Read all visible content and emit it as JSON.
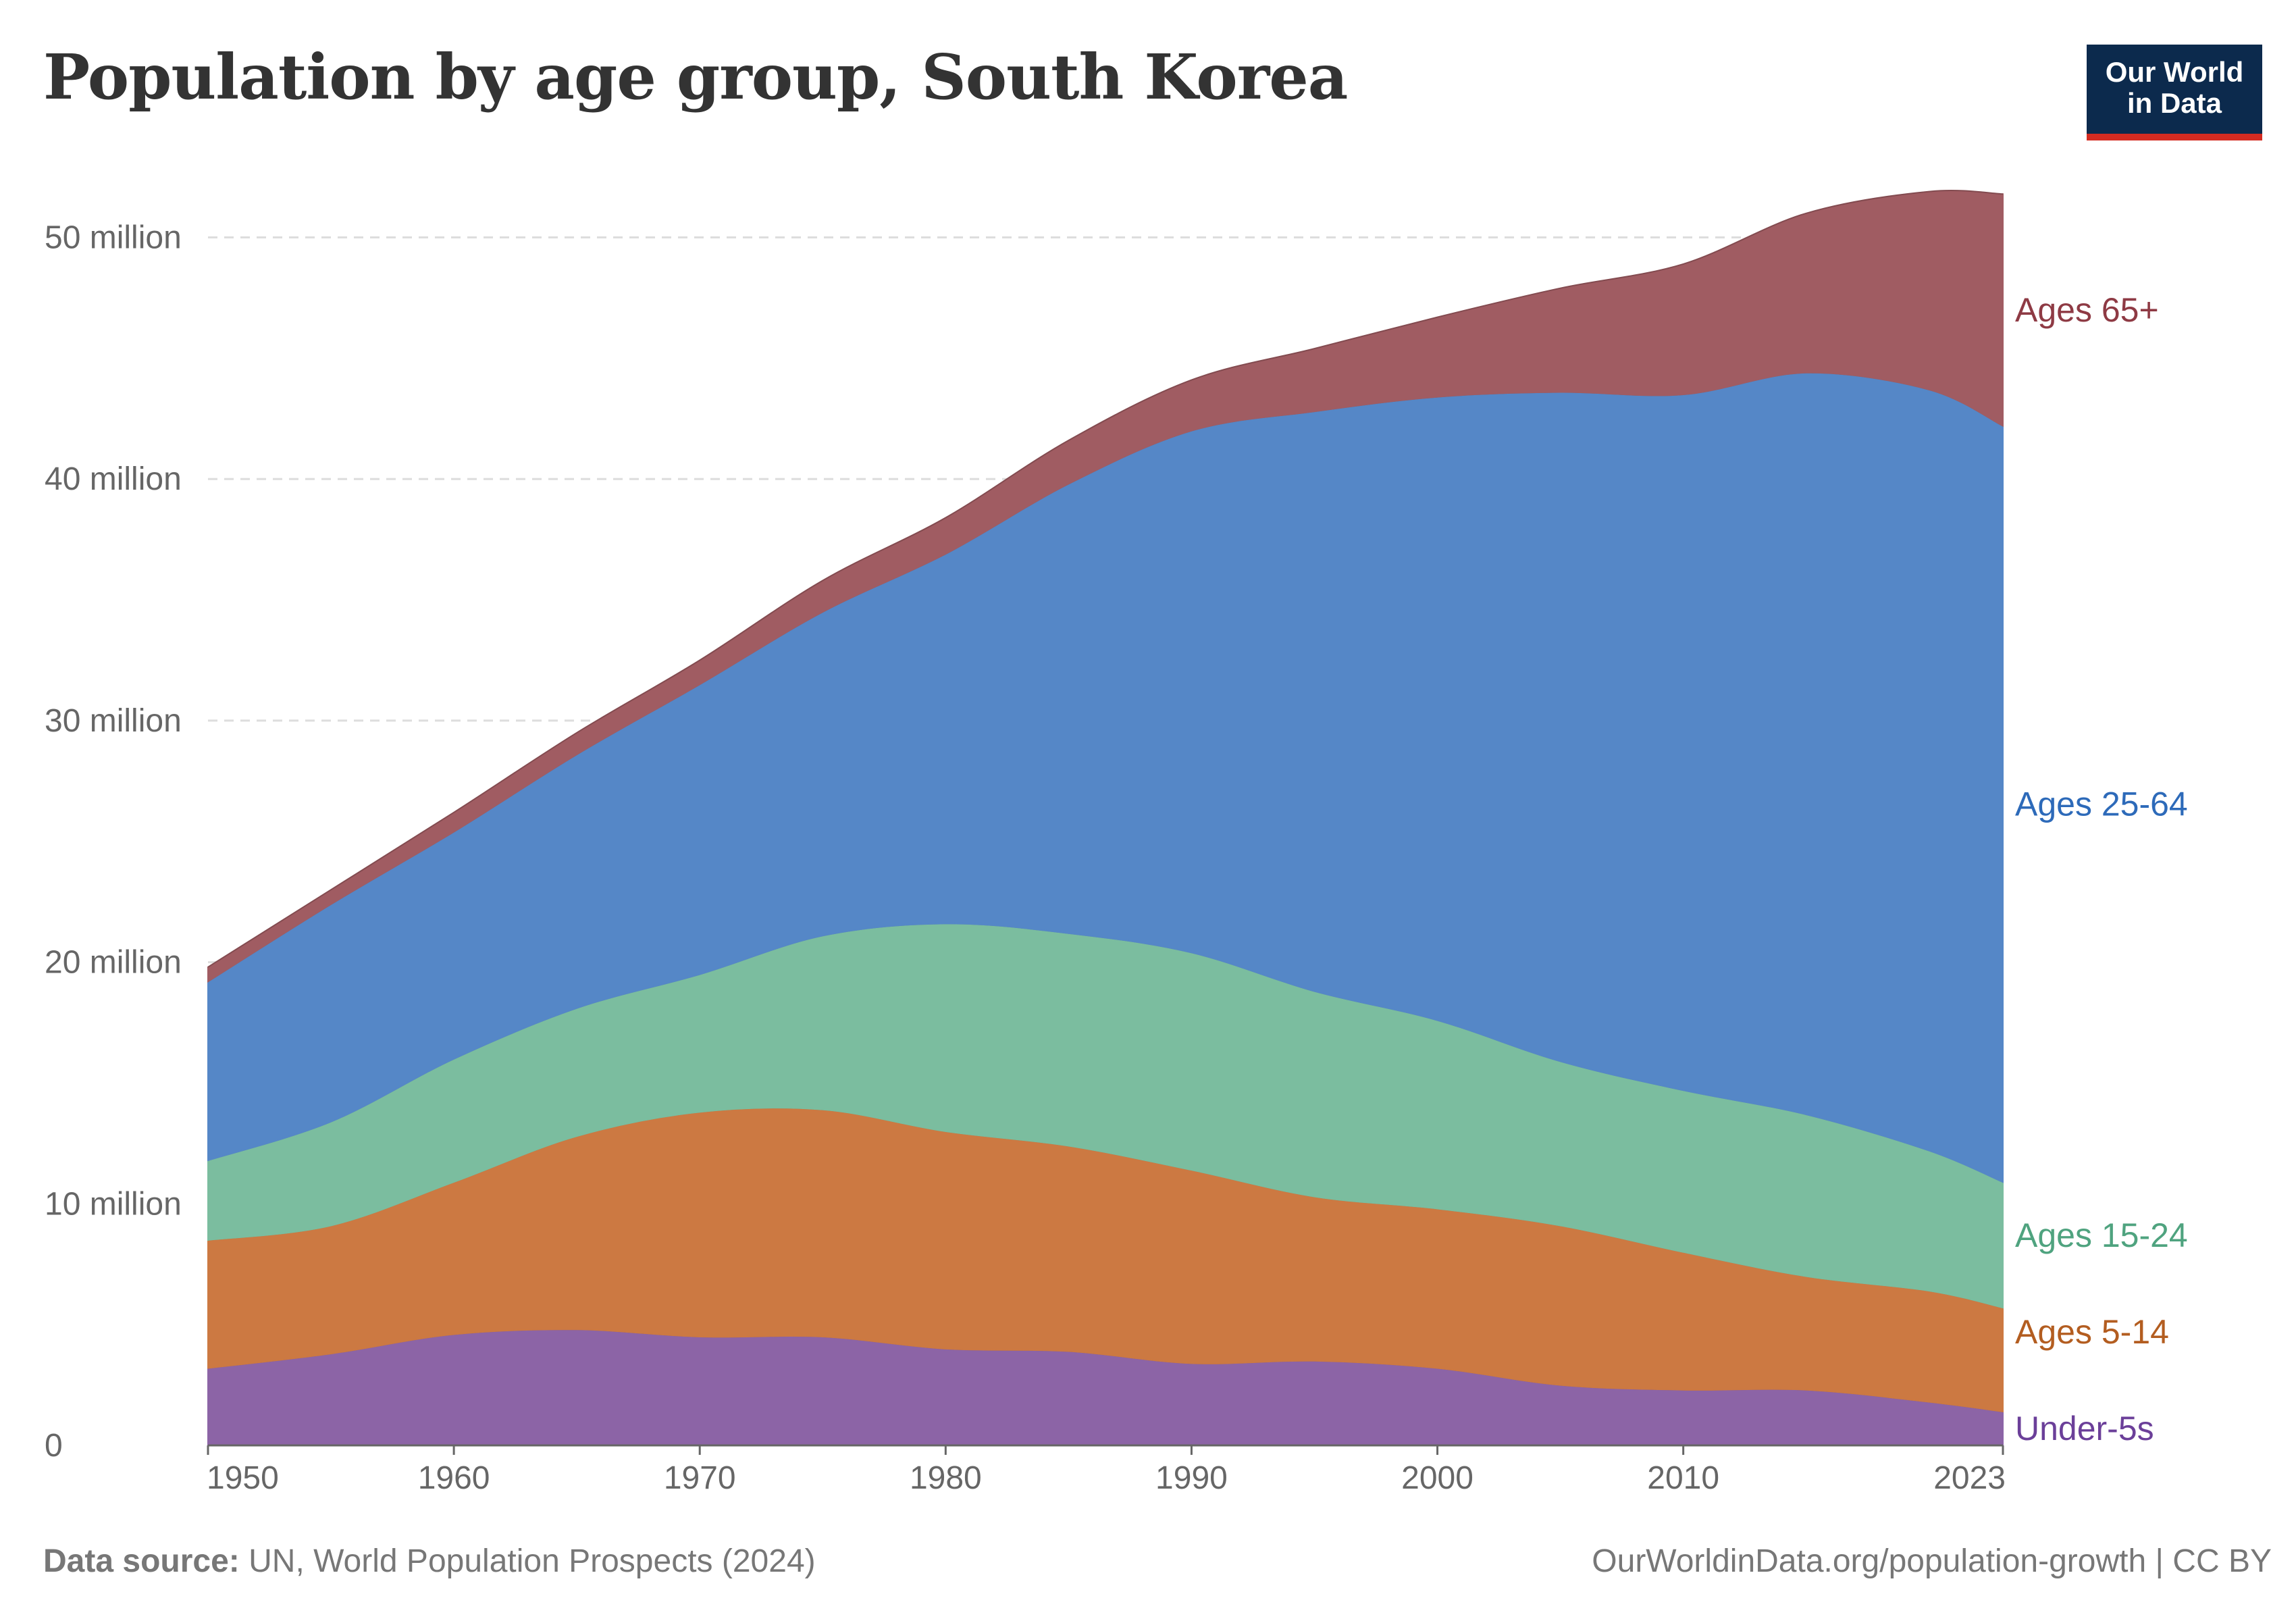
{
  "title": "Population by age group, South Korea",
  "logo": {
    "line1": "Our World",
    "line2": "in Data"
  },
  "footer": {
    "source_label": "Data source:",
    "source_text": "UN, World Population Prospects (2024)",
    "url": "OurWorldinData.org/population-growth",
    "license": "| CC BY"
  },
  "chart_data": {
    "type": "area",
    "stacked": true,
    "title": "Population by age group, South Korea",
    "xlabel": "",
    "ylabel": "",
    "xlim": [
      1950,
      2023
    ],
    "ylim": [
      0,
      52000000
    ],
    "y_ticks": [
      0,
      10000000,
      20000000,
      30000000,
      40000000,
      50000000
    ],
    "y_tick_labels": [
      "0",
      "10 million",
      "20 million",
      "30 million",
      "40 million",
      "50 million"
    ],
    "x_ticks": [
      1950,
      1960,
      1970,
      1980,
      1990,
      2000,
      2010,
      2023
    ],
    "x_tick_labels": [
      "1950",
      "1960",
      "1970",
      "1980",
      "1990",
      "2000",
      "2010",
      "2023"
    ],
    "grid": "horizontal-dashed",
    "legend": "inline-right",
    "x": [
      1950,
      1955,
      1960,
      1965,
      1970,
      1975,
      1980,
      1985,
      1990,
      1995,
      2000,
      2005,
      2010,
      2015,
      2020,
      2023
    ],
    "series": [
      {
        "name": "Under-5s",
        "color": "#8c64a6",
        "values": [
          3200000,
          3800000,
          4600000,
          4800000,
          4500000,
          4500000,
          4000000,
          3900000,
          3400000,
          3500000,
          3200000,
          2500000,
          2300000,
          2300000,
          1800000,
          1400000
        ]
      },
      {
        "name": "Ages 5-14",
        "color": "#cc7942",
        "values": [
          5300000,
          5300000,
          6300000,
          8000000,
          9300000,
          9400000,
          9000000,
          8500000,
          8000000,
          6800000,
          6600000,
          6600000,
          5700000,
          4700000,
          4600000,
          4300000
        ]
      },
      {
        "name": "Ages 15-24",
        "color": "#7bbd9f",
        "values": [
          3300000,
          4300000,
          5100000,
          5300000,
          5700000,
          7200000,
          8600000,
          8800000,
          9000000,
          8500000,
          7800000,
          6800000,
          6700000,
          6700000,
          5800000,
          5200000
        ]
      },
      {
        "name": "Ages 25-64",
        "color": "#5587c7",
        "values": [
          7400000,
          9000000,
          9400000,
          10500000,
          12000000,
          13400000,
          15300000,
          18600000,
          21600000,
          24000000,
          25800000,
          27700000,
          28800000,
          30700000,
          31500000,
          31300000
        ]
      },
      {
        "name": "Ages 65+",
        "color": "#a05c62",
        "values": [
          600000,
          600000,
          800000,
          900000,
          1000000,
          1300000,
          1500000,
          1800000,
          2100000,
          2600000,
          3300000,
          4300000,
          5400000,
          6600000,
          8200000,
          9600000
        ]
      }
    ]
  }
}
